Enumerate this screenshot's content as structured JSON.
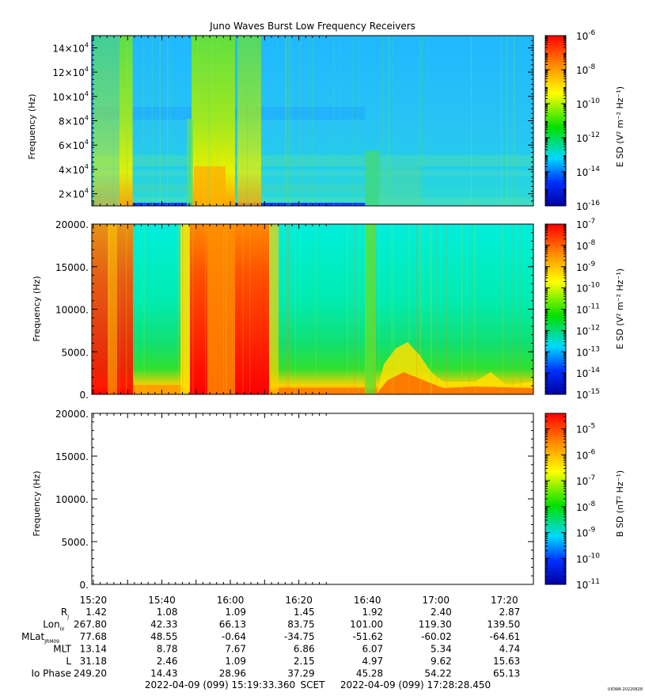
{
  "title": "Juno Waves Burst Low Frequency Receivers",
  "footer": {
    "start": "2022-04-09 (099) 15:19:33.360",
    "scet": "SCET",
    "end": "2022-04-09 (099) 17:28:28.450",
    "credit": "UIOWA 20220828"
  },
  "time_ticks": [
    "15:20",
    "15:40",
    "16:00",
    "16:20",
    "16:40",
    "17:00",
    "17:20"
  ],
  "ephemeris": [
    {
      "label": "R",
      "sub": "J",
      "values": [
        "1.42",
        "1.08",
        "1.09",
        "1.45",
        "1.92",
        "2.40",
        "2.87"
      ]
    },
    {
      "label": "Lon",
      "sub": "III",
      "values": [
        "267.80",
        "42.33",
        "66.13",
        "83.75",
        "101.00",
        "119.30",
        "139.50"
      ]
    },
    {
      "label": "MLat",
      "sub": "JRM09",
      "values": [
        "77.68",
        "48.55",
        "-0.64",
        "-34.75",
        "-51.62",
        "-60.02",
        "-64.61"
      ]
    },
    {
      "label": "MLT",
      "sub": "",
      "values": [
        "13.14",
        "8.78",
        "7.67",
        "6.86",
        "6.07",
        "5.34",
        "4.74"
      ]
    },
    {
      "label": "L",
      "sub": "",
      "values": [
        "31.18",
        "2.46",
        "1.09",
        "2.15",
        "4.97",
        "9.62",
        "15.63"
      ]
    },
    {
      "label": "Io Phase",
      "sub": "",
      "values": [
        "249.20",
        "14.43",
        "28.96",
        "37.29",
        "45.28",
        "54.22",
        "65.13"
      ]
    }
  ],
  "chart_data": [
    {
      "type": "heatmap",
      "ylabel": "Frequency (Hz)",
      "yticks": [
        {
          "mant": "2",
          "exp": "4"
        },
        {
          "mant": "4",
          "exp": "4"
        },
        {
          "mant": "6",
          "exp": "4"
        },
        {
          "mant": "8",
          "exp": "4"
        },
        {
          "mant": "10",
          "exp": "4"
        },
        {
          "mant": "12",
          "exp": "4"
        },
        {
          "mant": "14",
          "exp": "4"
        }
      ],
      "ylim": [
        10000,
        150000
      ],
      "colorbar": {
        "label": "E SD",
        "units": "V² m⁻² Hz⁻¹",
        "scale": "log",
        "range": [
          -16,
          -6
        ],
        "ticks": [
          -16,
          -14,
          -12,
          -10,
          -8,
          -6
        ]
      },
      "bursts": [
        [
          15.333,
          15.4
        ],
        [
          15.85,
          16.05
        ],
        [
          16.075,
          16.15
        ]
      ],
      "background": "cyan/blue"
    },
    {
      "type": "heatmap",
      "ylabel": "Frequency (Hz)",
      "yticks": [
        "0.",
        "5000.",
        "10000.",
        "15000.",
        "20000."
      ],
      "ylim": [
        0,
        20000
      ],
      "colorbar": {
        "label": "E SD",
        "units": "V² m⁻² Hz⁻¹",
        "scale": "log",
        "range": [
          -15,
          -7
        ],
        "ticks": [
          -15,
          -14,
          -13,
          -12,
          -11,
          -10,
          -9,
          -8,
          -7
        ]
      },
      "bursts": [
        [
          15.333,
          15.42
        ],
        [
          15.83,
          16.2
        ],
        [
          16.98,
          17.05
        ]
      ],
      "background": "green/cyan"
    },
    {
      "type": "heatmap",
      "ylabel": "Frequency (Hz)",
      "yticks": [
        "0.",
        "5000.",
        "10000.",
        "15000.",
        "20000."
      ],
      "ylim": [
        0,
        20000
      ],
      "colorbar": {
        "label": "B SD",
        "units": "nT² Hz⁻¹",
        "scale": "log",
        "range": [
          -11,
          -4.4
        ],
        "ticks": [
          -11,
          -10,
          -9,
          -8,
          -7,
          -6,
          -5
        ]
      },
      "empty": true
    }
  ],
  "colors": {
    "dark_blue": "#0000a0",
    "blue": "#0030ff",
    "cyan": "#00d8ff",
    "green": "#00e000",
    "yellow": "#ffff00",
    "orange": "#ff9000",
    "red": "#ff0000"
  }
}
